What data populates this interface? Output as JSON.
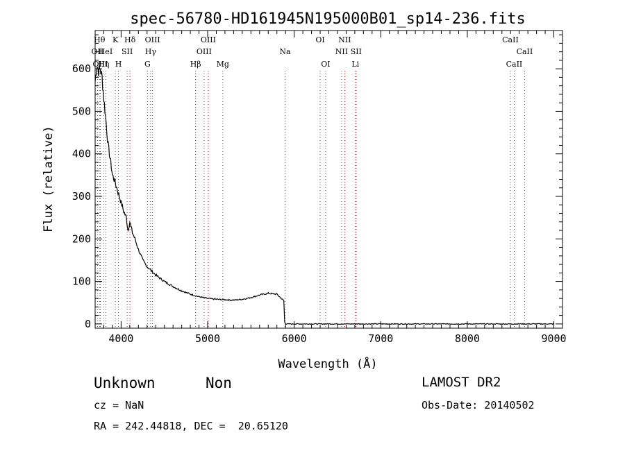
{
  "chart_data": {
    "type": "line",
    "title": "spec-56780-HD161945N195000B01_sp14-236.fits",
    "xlabel": "Wavelength (Å)",
    "ylabel": "Flux (relative)",
    "xlim": [
      3700,
      9100
    ],
    "ylim": [
      -10,
      690
    ],
    "xticks": [
      4000,
      5000,
      6000,
      7000,
      8000,
      9000
    ],
    "yticks": [
      0,
      100,
      200,
      300,
      400,
      500,
      600
    ],
    "grid": false,
    "series": [
      {
        "x": [
          3700,
          3720,
          3740,
          3760,
          3780,
          3800,
          3820,
          3850,
          3880,
          3900,
          3920,
          3950,
          3980,
          4000,
          4030,
          4060,
          4080,
          4100,
          4130,
          4160,
          4200,
          4250,
          4300,
          4350,
          4400,
          4500,
          4600,
          4700,
          4800,
          4900,
          5000,
          5100,
          5200,
          5300,
          5400,
          5500,
          5600,
          5700,
          5800,
          5850,
          5880,
          5890,
          5900,
          6000,
          6500,
          7000,
          7500,
          8000,
          8500,
          9000
        ],
        "y": [
          570,
          610,
          595,
          600,
          580,
          530,
          490,
          420,
          380,
          350,
          340,
          320,
          300,
          285,
          265,
          250,
          220,
          240,
          215,
          200,
          175,
          150,
          135,
          125,
          115,
          100,
          88,
          78,
          70,
          64,
          60,
          58,
          57,
          56,
          58,
          62,
          68,
          72,
          70,
          60,
          55,
          5,
          0,
          0,
          0,
          0,
          0,
          0,
          0,
          0
        ]
      }
    ],
    "line_marks": [
      {
        "label": "OII",
        "x": 3727,
        "row": 1
      },
      {
        "label": "Hθ",
        "x": 3750,
        "row": 0
      },
      {
        "label": "OIII",
        "x": 3760,
        "row": 2
      },
      {
        "label": "Hη",
        "x": 3798,
        "row": 2
      },
      {
        "label": "HeI",
        "x": 3820,
        "row": 1
      },
      {
        "label": "K",
        "x": 3934,
        "row": 0
      },
      {
        "label": "SII",
        "x": 4070,
        "row": 1
      },
      {
        "label": "H",
        "x": 3969,
        "row": 2
      },
      {
        "label": "Hδ",
        "x": 4102,
        "row": 0
      },
      {
        "label": "OIII",
        "x": 4363,
        "row": 0
      },
      {
        "label": "Hγ",
        "x": 4341,
        "row": 1
      },
      {
        "label": "G",
        "x": 4305,
        "row": 2
      },
      {
        "label": "OIII",
        "x": 5007,
        "row": 0
      },
      {
        "label": "OIII",
        "x": 4959,
        "row": 1
      },
      {
        "label": "Hβ",
        "x": 4861,
        "row": 2
      },
      {
        "label": "Mg",
        "x": 5175,
        "row": 2
      },
      {
        "label": "Na",
        "x": 5894,
        "row": 1
      },
      {
        "label": "OI",
        "x": 6300,
        "row": 0
      },
      {
        "label": "OI",
        "x": 6363,
        "row": 2
      },
      {
        "label": "NII",
        "x": 6583,
        "row": 0
      },
      {
        "label": "NII",
        "x": 6548,
        "row": 1
      },
      {
        "label": "SII",
        "x": 6716,
        "row": 1
      },
      {
        "label": "Li",
        "x": 6707,
        "row": 2
      },
      {
        "label": "CaII",
        "x": 8498,
        "row": 0
      },
      {
        "label": "CaII",
        "x": 8662,
        "row": 1
      },
      {
        "label": "CaII",
        "x": 8542,
        "row": 2
      }
    ],
    "red_marks": [
      4102,
      4861,
      5007,
      6583,
      6716
    ]
  },
  "footer": {
    "class": "Unknown",
    "subclass": "Non",
    "survey": "LAMOST DR2",
    "cz": "cz = NaN",
    "obs_date": "Obs-Date: 20140502",
    "radec": "RA = 242.44818, DEC =  20.65120"
  }
}
